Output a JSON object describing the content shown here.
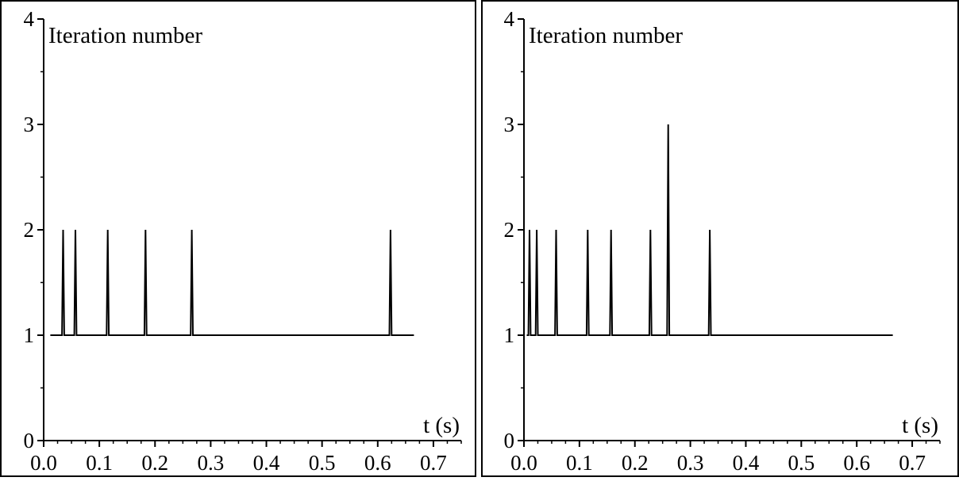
{
  "chart_data": [
    {
      "type": "line",
      "ylabel": "Iteration number",
      "xlabel": "t (s)",
      "xlim": [
        0,
        0.75
      ],
      "ylim": [
        0,
        4
      ],
      "xticks": [
        "0.0",
        "0.1",
        "0.2",
        "0.3",
        "0.4",
        "0.5",
        "0.6",
        "0.7"
      ],
      "yticks": [
        "0",
        "1",
        "2",
        "3",
        "4"
      ],
      "grid": false,
      "series": [
        {
          "x": [
            0.012,
            0.033,
            0.035,
            0.037,
            0.055,
            0.057,
            0.059,
            0.113,
            0.115,
            0.117,
            0.181,
            0.183,
            0.185,
            0.264,
            0.266,
            0.268,
            0.621,
            0.623,
            0.625,
            0.665
          ],
          "values": [
            1,
            1,
            2,
            1,
            1,
            2,
            1,
            1,
            2,
            1,
            1,
            2,
            1,
            1,
            2,
            1,
            1,
            2,
            1,
            1
          ]
        }
      ]
    },
    {
      "type": "line",
      "ylabel": "Iteration number",
      "xlabel": "t (s)",
      "xlim": [
        0,
        0.75
      ],
      "ylim": [
        0,
        4
      ],
      "xticks": [
        "0.0",
        "0.1",
        "0.2",
        "0.3",
        "0.4",
        "0.5",
        "0.6",
        "0.7"
      ],
      "yticks": [
        "0",
        "1",
        "2",
        "3",
        "4"
      ],
      "grid": false,
      "series": [
        {
          "x": [
            0.005,
            0.008,
            0.01,
            0.012,
            0.021,
            0.023,
            0.025,
            0.056,
            0.058,
            0.06,
            0.113,
            0.115,
            0.117,
            0.155,
            0.157,
            0.159,
            0.226,
            0.228,
            0.23,
            0.258,
            0.26,
            0.262,
            0.333,
            0.335,
            0.337,
            0.665
          ],
          "values": [
            1,
            1,
            2,
            1,
            1,
            2,
            1,
            1,
            2,
            1,
            1,
            2,
            1,
            1,
            2,
            1,
            1,
            2,
            1,
            1,
            3,
            1,
            1,
            2,
            1,
            1
          ]
        }
      ]
    }
  ]
}
